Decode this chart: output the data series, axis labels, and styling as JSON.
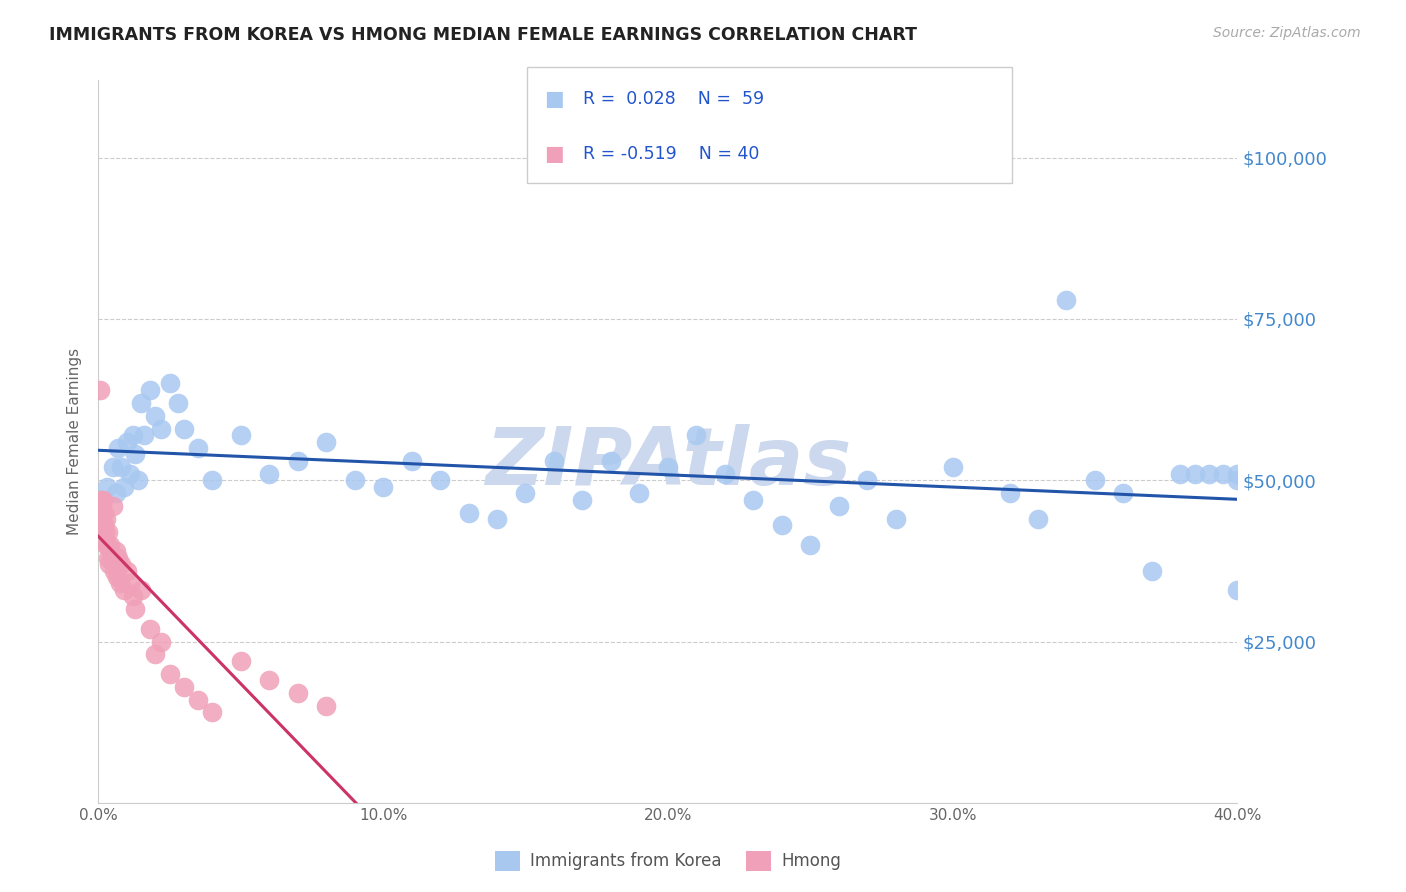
{
  "title": "IMMIGRANTS FROM KOREA VS HMONG MEDIAN FEMALE EARNINGS CORRELATION CHART",
  "source": "Source: ZipAtlas.com",
  "ylabel": "Median Female Earnings",
  "ytick_vals": [
    0,
    25000,
    50000,
    75000,
    100000
  ],
  "ytick_labels": [
    "",
    "$25,000",
    "$50,000",
    "$75,000",
    "$100,000"
  ],
  "ylim": [
    0,
    112000
  ],
  "xlim": [
    0.0,
    40.0
  ],
  "xtick_vals": [
    0.0,
    10.0,
    20.0,
    30.0,
    40.0
  ],
  "korea_R": 0.028,
  "korea_N": 59,
  "hmong_R": -0.519,
  "hmong_N": 40,
  "korea_color": "#a8c8f0",
  "korea_line_color": "#2255aa",
  "hmong_color": "#f0a0b8",
  "hmong_line_color": "#cc3366",
  "watermark_color": "#ccd8ee",
  "korea_x": [
    0.3,
    0.5,
    0.6,
    0.7,
    0.8,
    0.9,
    1.0,
    1.1,
    1.2,
    1.3,
    1.4,
    1.5,
    1.6,
    1.8,
    2.0,
    2.2,
    2.5,
    2.8,
    3.0,
    3.5,
    4.0,
    5.0,
    6.0,
    7.0,
    8.0,
    9.0,
    10.0,
    11.0,
    12.0,
    13.0,
    14.0,
    15.0,
    16.0,
    17.0,
    18.0,
    19.0,
    20.0,
    21.0,
    22.0,
    23.0,
    24.0,
    25.0,
    26.0,
    27.0,
    28.0,
    30.0,
    32.0,
    33.0,
    34.0,
    35.0,
    36.0,
    37.0,
    38.0,
    38.5,
    39.0,
    39.5,
    40.0,
    40.0,
    40.0
  ],
  "korea_y": [
    49000,
    52000,
    48000,
    55000,
    52000,
    49000,
    56000,
    51000,
    57000,
    54000,
    50000,
    62000,
    57000,
    64000,
    60000,
    58000,
    65000,
    62000,
    58000,
    55000,
    50000,
    57000,
    51000,
    53000,
    56000,
    50000,
    49000,
    53000,
    50000,
    45000,
    44000,
    48000,
    53000,
    47000,
    53000,
    48000,
    52000,
    57000,
    51000,
    47000,
    43000,
    40000,
    46000,
    50000,
    44000,
    52000,
    48000,
    44000,
    78000,
    50000,
    48000,
    36000,
    51000,
    51000,
    51000,
    51000,
    51000,
    33000,
    50000
  ],
  "hmong_x": [
    0.05,
    0.08,
    0.1,
    0.12,
    0.15,
    0.18,
    0.2,
    0.22,
    0.25,
    0.28,
    0.3,
    0.32,
    0.35,
    0.38,
    0.4,
    0.45,
    0.5,
    0.55,
    0.6,
    0.65,
    0.7,
    0.75,
    0.8,
    0.9,
    1.0,
    1.1,
    1.2,
    1.3,
    1.5,
    1.8,
    2.0,
    2.2,
    2.5,
    3.0,
    3.5,
    4.0,
    5.0,
    6.0,
    7.0,
    8.0
  ],
  "hmong_y": [
    64000,
    47000,
    46000,
    44000,
    47000,
    45000,
    43000,
    42000,
    44000,
    40000,
    40000,
    38000,
    42000,
    37000,
    40000,
    38000,
    46000,
    36000,
    39000,
    35000,
    38000,
    34000,
    37000,
    33000,
    36000,
    34000,
    32000,
    30000,
    33000,
    27000,
    23000,
    25000,
    20000,
    18000,
    16000,
    14000,
    22000,
    19000,
    17000,
    15000
  ]
}
